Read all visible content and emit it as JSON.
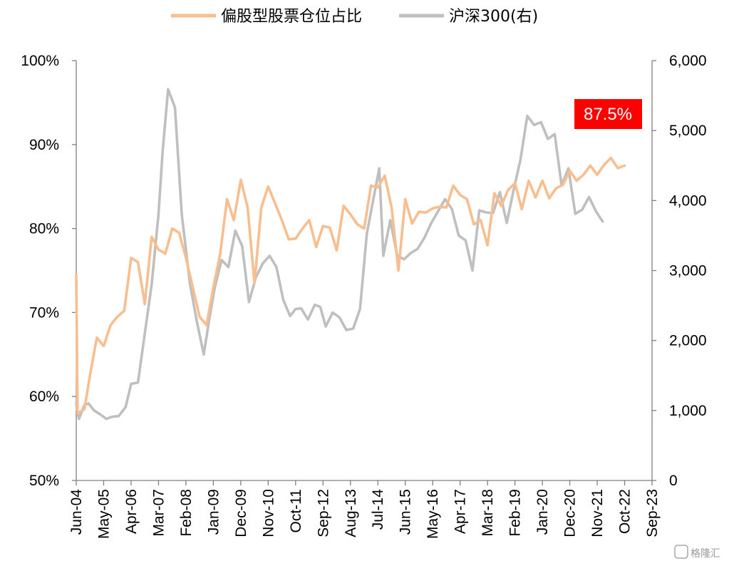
{
  "chart_data": {
    "type": "line",
    "title": "",
    "xlabel": "",
    "ylabel": "",
    "ylabel_right": "",
    "grid": false,
    "legend_position": "top-center",
    "x_tick_labels": [
      "Jun-04",
      "May-05",
      "Apr-06",
      "Mar-07",
      "Feb-08",
      "Jan-09",
      "Dec-09",
      "Nov-10",
      "Oct-11",
      "Sep-12",
      "Aug-13",
      "Jul-14",
      "Jun-15",
      "May-16",
      "Apr-17",
      "Mar-18",
      "Feb-19",
      "Jan-20",
      "Dec-20",
      "Nov-21",
      "Oct-22",
      "Sep-23"
    ],
    "y_left": {
      "range": [
        50,
        100
      ],
      "ticks": [
        50,
        60,
        70,
        80,
        90,
        100
      ],
      "tick_labels": [
        "50%",
        "60%",
        "70%",
        "80%",
        "90%",
        "100%"
      ]
    },
    "y_right": {
      "range": [
        0,
        6000
      ],
      "ticks": [
        0,
        1000,
        2000,
        3000,
        4000,
        5000,
        6000
      ],
      "tick_labels": [
        "0",
        "1,000",
        "2,000",
        "3,000",
        "4,000",
        "5,000",
        "6,000"
      ]
    },
    "series": [
      {
        "name": "偏股型股票仓位占比",
        "axis": "left",
        "color": "#F9BE8F",
        "points": [
          [
            0,
            74.5
          ],
          [
            0.05,
            58.0
          ],
          [
            0.3,
            58.5
          ],
          [
            0.5,
            62.5
          ],
          [
            0.75,
            67.0
          ],
          [
            1.0,
            66.0
          ],
          [
            1.25,
            68.5
          ],
          [
            1.5,
            69.5
          ],
          [
            1.75,
            70.2
          ],
          [
            2.0,
            76.5
          ],
          [
            2.25,
            76.0
          ],
          [
            2.5,
            71.0
          ],
          [
            2.75,
            79.0
          ],
          [
            3.0,
            77.5
          ],
          [
            3.25,
            77.0
          ],
          [
            3.5,
            80.0
          ],
          [
            3.75,
            79.5
          ],
          [
            4.0,
            76.5
          ],
          [
            4.25,
            73.0
          ],
          [
            4.5,
            69.5
          ],
          [
            4.75,
            68.5
          ],
          [
            5.0,
            73.0
          ],
          [
            5.25,
            77.0
          ],
          [
            5.5,
            83.5
          ],
          [
            5.75,
            81.0
          ],
          [
            6.0,
            85.8
          ],
          [
            6.25,
            82.5
          ],
          [
            6.5,
            73.5
          ],
          [
            6.75,
            82.5
          ],
          [
            7.0,
            85.0
          ],
          [
            7.25,
            83.0
          ],
          [
            7.5,
            81.0
          ],
          [
            7.75,
            78.7
          ],
          [
            8.0,
            78.8
          ],
          [
            8.25,
            80.0
          ],
          [
            8.5,
            81.0
          ],
          [
            8.75,
            77.8
          ],
          [
            9.0,
            80.3
          ],
          [
            9.25,
            80.1
          ],
          [
            9.5,
            77.4
          ],
          [
            9.75,
            82.7
          ],
          [
            10.0,
            81.7
          ],
          [
            10.25,
            80.5
          ],
          [
            10.5,
            80.0
          ],
          [
            10.75,
            85.1
          ],
          [
            11.0,
            84.9
          ],
          [
            11.25,
            86.3
          ],
          [
            11.5,
            82.5
          ],
          [
            11.75,
            75.0
          ],
          [
            12.0,
            83.5
          ],
          [
            12.25,
            80.6
          ],
          [
            12.5,
            82.0
          ],
          [
            12.75,
            81.9
          ],
          [
            13.0,
            82.4
          ],
          [
            13.25,
            82.6
          ],
          [
            13.5,
            82.5
          ],
          [
            13.75,
            85.1
          ],
          [
            14.0,
            84.0
          ],
          [
            14.25,
            83.5
          ],
          [
            14.5,
            80.5
          ],
          [
            14.75,
            81.0
          ],
          [
            15.0,
            78.0
          ],
          [
            15.25,
            84.2
          ],
          [
            15.5,
            82.7
          ],
          [
            15.75,
            84.6
          ],
          [
            16.0,
            85.4
          ],
          [
            16.25,
            82.3
          ],
          [
            16.5,
            85.7
          ],
          [
            16.75,
            83.7
          ],
          [
            17.0,
            85.7
          ],
          [
            17.25,
            83.6
          ],
          [
            17.5,
            84.8
          ],
          [
            17.75,
            85.2
          ],
          [
            18.0,
            86.9
          ],
          [
            18.25,
            85.7
          ],
          [
            18.5,
            86.4
          ],
          [
            18.75,
            87.5
          ],
          [
            19.0,
            86.4
          ],
          [
            19.25,
            87.6
          ],
          [
            19.5,
            88.4
          ],
          [
            19.75,
            87.2
          ],
          [
            20.0,
            87.5
          ]
        ]
      },
      {
        "name": "沪深300(右)",
        "axis": "right",
        "color": "#BFBFBF",
        "points": [
          [
            0.0,
            1100
          ],
          [
            0.1,
            880
          ],
          [
            0.3,
            1080
          ],
          [
            0.45,
            1100
          ],
          [
            0.65,
            1000
          ],
          [
            0.85,
            950
          ],
          [
            1.1,
            880
          ],
          [
            1.3,
            910
          ],
          [
            1.55,
            920
          ],
          [
            1.8,
            1050
          ],
          [
            2.0,
            1380
          ],
          [
            2.25,
            1400
          ],
          [
            2.5,
            2100
          ],
          [
            2.75,
            2800
          ],
          [
            3.0,
            3800
          ],
          [
            3.15,
            4700
          ],
          [
            3.35,
            5590
          ],
          [
            3.6,
            5330
          ],
          [
            3.85,
            3800
          ],
          [
            4.15,
            2800
          ],
          [
            4.4,
            2270
          ],
          [
            4.65,
            1800
          ],
          [
            4.85,
            2300
          ],
          [
            5.05,
            2750
          ],
          [
            5.3,
            3150
          ],
          [
            5.55,
            3050
          ],
          [
            5.8,
            3570
          ],
          [
            6.05,
            3350
          ],
          [
            6.3,
            2550
          ],
          [
            6.55,
            2900
          ],
          [
            6.8,
            3100
          ],
          [
            7.05,
            3210
          ],
          [
            7.3,
            3050
          ],
          [
            7.55,
            2580
          ],
          [
            7.8,
            2350
          ],
          [
            8.0,
            2450
          ],
          [
            8.2,
            2460
          ],
          [
            8.45,
            2300
          ],
          [
            8.7,
            2510
          ],
          [
            8.9,
            2480
          ],
          [
            9.1,
            2200
          ],
          [
            9.35,
            2400
          ],
          [
            9.6,
            2330
          ],
          [
            9.85,
            2150
          ],
          [
            10.1,
            2170
          ],
          [
            10.35,
            2450
          ],
          [
            10.6,
            3530
          ],
          [
            10.85,
            4050
          ],
          [
            11.05,
            4460
          ],
          [
            11.2,
            3210
          ],
          [
            11.45,
            3720
          ],
          [
            11.7,
            3220
          ],
          [
            11.95,
            3160
          ],
          [
            12.2,
            3250
          ],
          [
            12.45,
            3310
          ],
          [
            12.7,
            3470
          ],
          [
            12.95,
            3680
          ],
          [
            13.2,
            3850
          ],
          [
            13.45,
            4020
          ],
          [
            13.7,
            3880
          ],
          [
            13.95,
            3500
          ],
          [
            14.2,
            3430
          ],
          [
            14.45,
            3000
          ],
          [
            14.7,
            3860
          ],
          [
            14.95,
            3830
          ],
          [
            15.2,
            3820
          ],
          [
            15.45,
            4120
          ],
          [
            15.7,
            3680
          ],
          [
            15.95,
            4150
          ],
          [
            16.2,
            4580
          ],
          [
            16.45,
            5210
          ],
          [
            16.7,
            5080
          ],
          [
            16.95,
            5120
          ],
          [
            17.2,
            4880
          ],
          [
            17.45,
            4950
          ],
          [
            17.7,
            4220
          ],
          [
            17.95,
            4460
          ],
          [
            18.2,
            3810
          ],
          [
            18.45,
            3870
          ],
          [
            18.7,
            4050
          ],
          [
            18.95,
            3850
          ],
          [
            19.2,
            3700
          ]
        ]
      }
    ],
    "annotations": [
      {
        "text": "87.5%",
        "series": "偏股型股票仓位占比",
        "background": "#FF0000",
        "text_color": "#FFFFFF"
      }
    ]
  },
  "watermark": {
    "text": "格隆汇"
  }
}
